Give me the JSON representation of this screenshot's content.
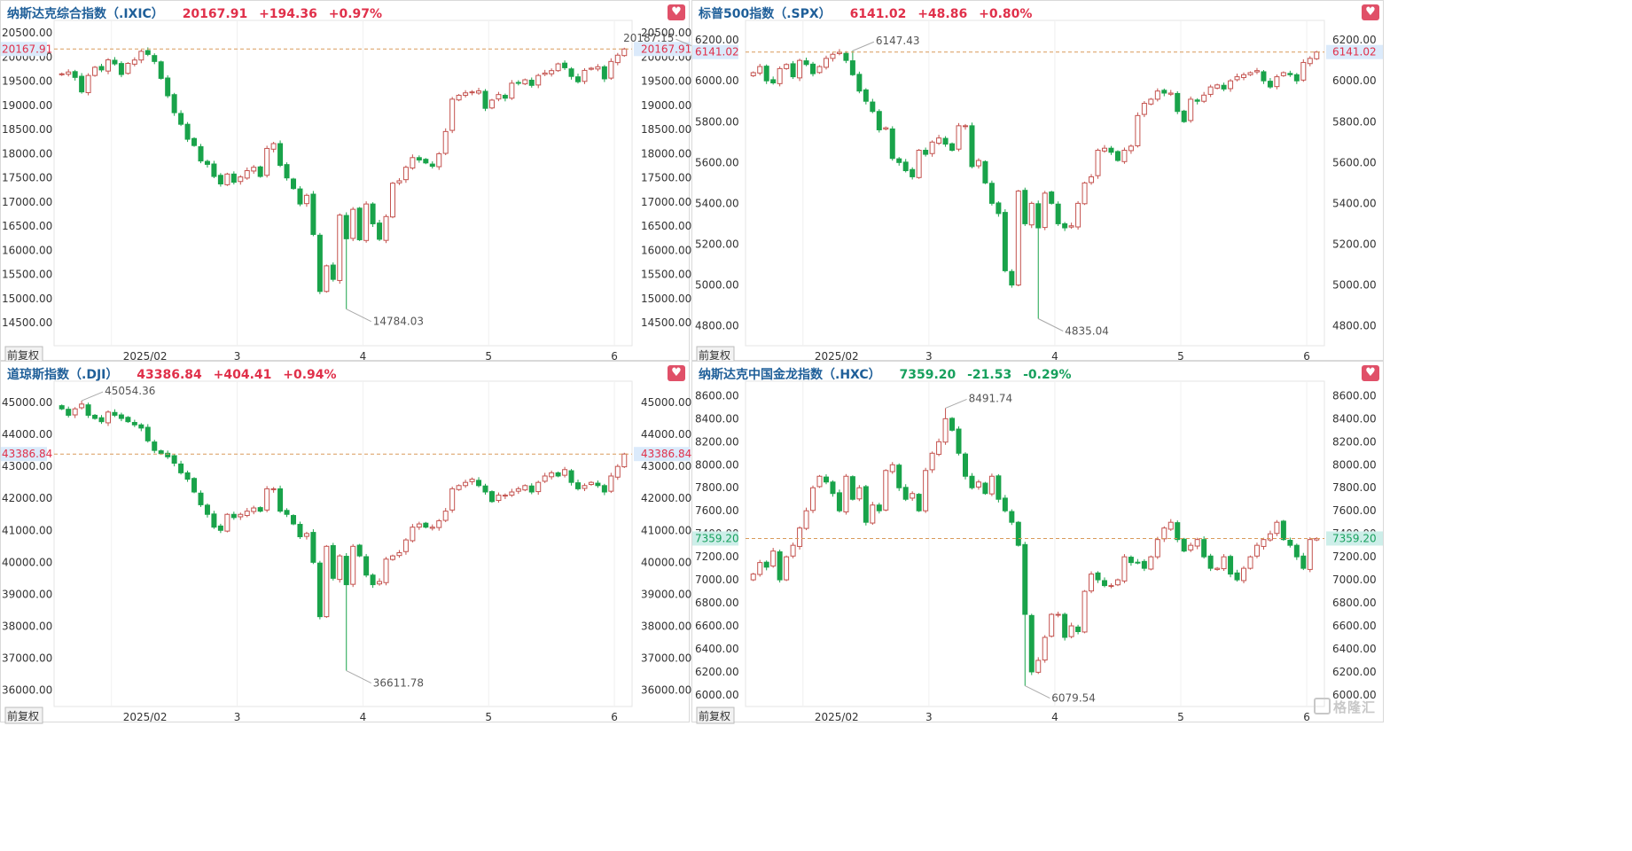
{
  "panels": [
    {
      "name": "纳斯达克综合指数（.IXIC）",
      "price": "20167.91",
      "change": "+194.36",
      "pct": "+0.97%",
      "direction": "up",
      "active": true,
      "y_labels": [
        "20500.00",
        "20000.00",
        "19500.00",
        "19000.00",
        "18500.00",
        "18000.00",
        "17500.00",
        "17000.00",
        "16500.00",
        "16000.00",
        "15500.00",
        "15000.00",
        "14500.00"
      ],
      "current_label": "20167.91",
      "x_labels": [
        "2025/02",
        "3",
        "4",
        "5",
        "6"
      ],
      "high_label": "20187.15",
      "low_label": "14784.03",
      "adjust_label": "前复权"
    },
    {
      "name": "标普500指数（.SPX）",
      "price": "6141.02",
      "change": "+48.86",
      "pct": "+0.80%",
      "direction": "up",
      "active": false,
      "y_labels": [
        "6200.00",
        "6000.00",
        "5800.00",
        "5600.00",
        "5400.00",
        "5200.00",
        "5000.00",
        "4800.00"
      ],
      "current_label": "6141.02",
      "x_labels": [
        "2025/02",
        "3",
        "4",
        "5",
        "6"
      ],
      "high_label": "6147.43",
      "low_label": "4835.04",
      "adjust_label": "前复权"
    },
    {
      "name": "道琼斯指数（.DJI）",
      "price": "43386.84",
      "change": "+404.41",
      "pct": "+0.94%",
      "direction": "up",
      "active": false,
      "y_labels": [
        "45000.00",
        "44000.00",
        "43000.00",
        "42000.00",
        "41000.00",
        "40000.00",
        "39000.00",
        "38000.00",
        "37000.00",
        "36000.00"
      ],
      "current_label": "43386.84",
      "x_labels": [
        "2025/02",
        "3",
        "4",
        "5",
        "6"
      ],
      "high_label": "45054.36",
      "low_label": "36611.78",
      "adjust_label": "前复权"
    },
    {
      "name": "纳斯达克中国金龙指数（.HXC）",
      "price": "7359.20",
      "change": "-21.53",
      "pct": "-0.29%",
      "direction": "down",
      "active": false,
      "y_labels": [
        "8600.00",
        "8400.00",
        "8200.00",
        "8000.00",
        "7800.00",
        "7600.00",
        "7400.00",
        "7200.00",
        "7000.00",
        "6800.00",
        "6600.00",
        "6400.00",
        "6200.00",
        "6000.00"
      ],
      "current_label": "7359.20",
      "x_labels": [
        "2025/02",
        "3",
        "4",
        "5",
        "6"
      ],
      "high_label": "8491.74",
      "low_label": "6079.54",
      "adjust_label": "前复权"
    }
  ],
  "colors": {
    "up": "#e0304a",
    "down": "#17a05d",
    "candle_up": "#c4524e",
    "candle_down": "#19a34a",
    "ref_line": "#d99a5a",
    "label_bg_up": "#dbeafb",
    "label_bg_down": "#cdeee9"
  },
  "watermark": "格隆汇",
  "icons": {
    "favorite": "heart-icon",
    "watermark": "glh-logo-icon"
  },
  "chart_data": [
    {
      "type": "candlestick",
      "title": "纳斯达克综合指数（.IXIC）",
      "ylim": [
        14100,
        20650
      ],
      "ticks": [
        20500,
        20000,
        19500,
        19000,
        18500,
        18000,
        17500,
        17000,
        16500,
        16000,
        15500,
        15000,
        14500
      ],
      "x_months": [
        "2025/02",
        "3",
        "4",
        "5",
        "6"
      ],
      "month_start_index": [
        8,
        27,
        46,
        65,
        84
      ],
      "current": 20167.91,
      "high": {
        "index": 96,
        "value": 20187.15,
        "label": "20187.15"
      },
      "low": {
        "index": 43,
        "value": 14784.03,
        "label": "14784.03"
      },
      "closes": [
        19654,
        19692,
        19580,
        19280,
        19620,
        19790,
        19735,
        19943,
        19860,
        19640,
        19870,
        19940,
        20120,
        20056,
        19910,
        19560,
        19200,
        18850,
        18610,
        18300,
        18170,
        17850,
        17780,
        17530,
        17375,
        17580,
        17410,
        17520,
        17650,
        17720,
        17530,
        18110,
        18210,
        17760,
        17500,
        17280,
        16960,
        17140,
        16330,
        15150,
        15680,
        15400,
        16730,
        16240,
        16850,
        16220,
        16960,
        16550,
        16230,
        16700,
        17390,
        17440,
        17720,
        17920,
        17870,
        17810,
        17740,
        18000,
        18460,
        19130,
        19210,
        19260,
        19280,
        19300,
        18940,
        19110,
        19225,
        19150,
        19460,
        19470,
        19530,
        19415,
        19620,
        19670,
        19720,
        19860,
        19780,
        19600,
        19490,
        19725,
        19770,
        19800,
        19550,
        19910,
        20040,
        20167.91
      ]
    },
    {
      "type": "candlestick",
      "title": "标普500指数（.SPX）",
      "ylim": [
        4720,
        6270
      ],
      "ticks": [
        6200,
        6000,
        5800,
        5600,
        5400,
        5200,
        5000,
        4800
      ],
      "x_months": [
        "2025/02",
        "3",
        "4",
        "5",
        "6"
      ],
      "month_start_index": [
        8,
        27,
        46,
        65,
        84
      ],
      "current": 6141.02,
      "high": {
        "index": 15,
        "value": 6147.43,
        "label": "6147.43"
      },
      "low": {
        "index": 43,
        "value": 4835.04,
        "label": "4835.04"
      },
      "closes": [
        6040,
        6070,
        6000,
        5990,
        6060,
        6080,
        6020,
        6100,
        6080,
        6035,
        6070,
        6110,
        6130,
        6140,
        6100,
        6030,
        5950,
        5900,
        5850,
        5760,
        5770,
        5620,
        5600,
        5560,
        5530,
        5660,
        5640,
        5700,
        5720,
        5690,
        5660,
        5780,
        5780,
        5580,
        5610,
        5500,
        5400,
        5350,
        5070,
        5000,
        5460,
        5300,
        5400,
        5280,
        5450,
        5400,
        5300,
        5280,
        5290,
        5400,
        5500,
        5530,
        5660,
        5670,
        5650,
        5610,
        5660,
        5680,
        5830,
        5890,
        5910,
        5950,
        5940,
        5940,
        5850,
        5800,
        5910,
        5900,
        5930,
        5970,
        5980,
        5960,
        6000,
        6020,
        6030,
        6040,
        6050,
        6000,
        5970,
        6020,
        6040,
        6030,
        6000,
        6090,
        6110,
        6141.02
      ]
    },
    {
      "type": "candlestick",
      "title": "道琼斯指数（.DJI）",
      "ylim": [
        35600,
        45500
      ],
      "ticks": [
        45000,
        44000,
        43000,
        42000,
        41000,
        40000,
        39000,
        38000,
        37000,
        36000
      ],
      "x_months": [
        "2025/02",
        "3",
        "4",
        "5",
        "6"
      ],
      "month_start_index": [
        8,
        27,
        46,
        65,
        84
      ],
      "current": 43386.84,
      "high": {
        "index": 3,
        "value": 45054.36,
        "label": "45054.36"
      },
      "low": {
        "index": 43,
        "value": 36611.78,
        "label": "36611.78"
      },
      "closes": [
        44800,
        44600,
        44800,
        44950,
        44600,
        44500,
        44400,
        44700,
        44600,
        44500,
        44400,
        44300,
        44200,
        43800,
        43500,
        43400,
        43300,
        43100,
        42800,
        42600,
        42200,
        41800,
        41500,
        41100,
        41000,
        41500,
        41400,
        41500,
        41600,
        41700,
        41600,
        42300,
        42300,
        41600,
        41500,
        41200,
        40800,
        40900,
        40000,
        38300,
        40500,
        39500,
        40200,
        39300,
        40500,
        40200,
        39600,
        39300,
        39400,
        40100,
        40200,
        40300,
        40700,
        41100,
        41200,
        41100,
        41100,
        41300,
        41600,
        42300,
        42400,
        42500,
        42600,
        42400,
        42200,
        41900,
        42100,
        42100,
        42200,
        42300,
        42400,
        42200,
        42500,
        42700,
        42800,
        42700,
        42900,
        42500,
        42300,
        42400,
        42500,
        42400,
        42200,
        42700,
        43000,
        43386.84
      ]
    },
    {
      "type": "candlestick",
      "title": "纳斯达克中国金龙指数（.HXC）",
      "ylim": [
        5930,
        8680
      ],
      "ticks": [
        8600,
        8400,
        8200,
        8000,
        7800,
        7600,
        7400,
        7200,
        7000,
        6800,
        6600,
        6400,
        6200,
        6000
      ],
      "x_months": [
        "2025/02",
        "3",
        "4",
        "5",
        "6"
      ],
      "month_start_index": [
        8,
        27,
        46,
        65,
        84
      ],
      "current": 7359.2,
      "high": {
        "index": 29,
        "value": 8491.74,
        "label": "8491.74"
      },
      "low": {
        "index": 41,
        "value": 6079.54,
        "label": "6079.54"
      },
      "closes": [
        7050,
        7150,
        7110,
        7250,
        7000,
        7200,
        7300,
        7450,
        7600,
        7800,
        7900,
        7850,
        7750,
        7600,
        7900,
        7700,
        7800,
        7500,
        7650,
        7600,
        7950,
        8000,
        7800,
        7700,
        7750,
        7600,
        7950,
        8100,
        8200,
        8400,
        8300,
        8100,
        7900,
        7800,
        7850,
        7750,
        7900,
        7700,
        7600,
        7500,
        7300,
        6700,
        6200,
        6300,
        6500,
        6700,
        6700,
        6500,
        6600,
        6550,
        6900,
        7050,
        7000,
        6950,
        6950,
        7000,
        7200,
        7150,
        7150,
        7100,
        7200,
        7350,
        7450,
        7500,
        7350,
        7250,
        7300,
        7350,
        7200,
        7100,
        7100,
        7200,
        7050,
        7000,
        7100,
        7200,
        7300,
        7350,
        7400,
        7500,
        7350,
        7300,
        7200,
        7100,
        7350,
        7359.2
      ]
    }
  ]
}
